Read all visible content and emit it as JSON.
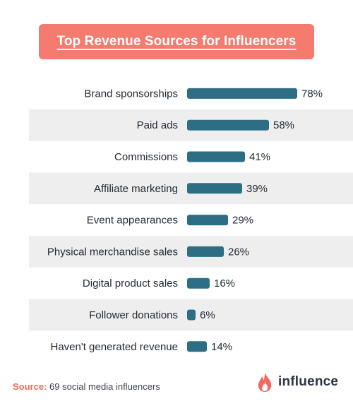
{
  "header": {
    "title": "Top Revenue Sources for Influencers"
  },
  "chart_data": {
    "type": "bar",
    "orientation": "horizontal",
    "title": "Top Revenue Sources for Influencers",
    "categories": [
      "Brand sponsorships",
      "Paid ads",
      "Commissions",
      "Affiliate marketing",
      "Event appearances",
      "Physical merchandise sales",
      "Digital product sales",
      "Follower donations",
      "Haven't generated revenue"
    ],
    "values": [
      78,
      58,
      41,
      39,
      29,
      26,
      16,
      6,
      14
    ],
    "value_labels": [
      "78%",
      "58%",
      "41%",
      "39%",
      "29%",
      "26%",
      "16%",
      "6%",
      "14%"
    ],
    "unit": "%",
    "xlim": [
      0,
      100
    ],
    "grid": false,
    "legend": "none",
    "colors": {
      "bar": "#2e6e84",
      "alt_row": "#eeeeee",
      "title_bg": "#f47b6e"
    }
  },
  "footer": {
    "source_key": "Source:",
    "source_text": " 69 social media influencers",
    "brand": "influence"
  }
}
